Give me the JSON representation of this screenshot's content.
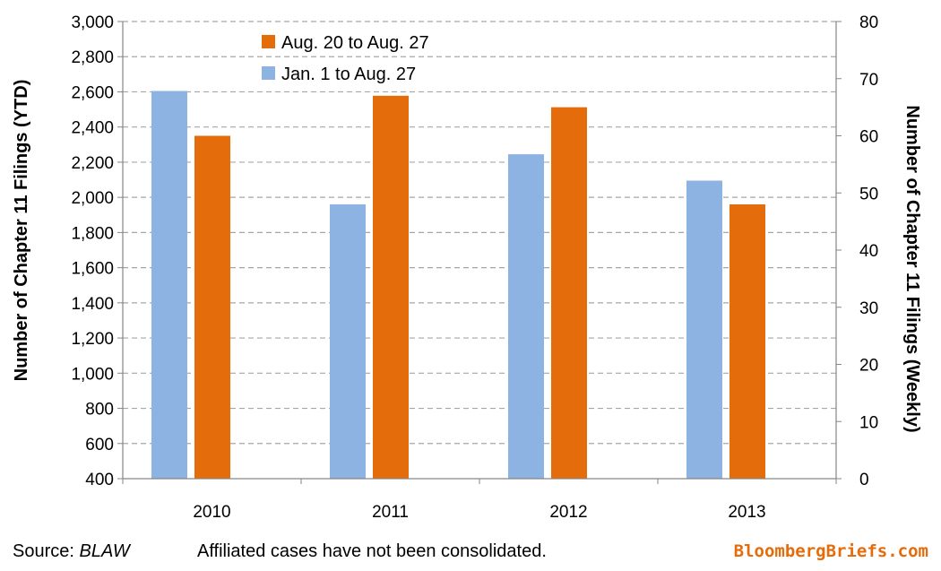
{
  "chart_data": {
    "type": "bar",
    "categories": [
      "2010",
      "2011",
      "2012",
      "2013"
    ],
    "series": [
      {
        "name": "Jan. 1 to Aug. 27",
        "axis": "left",
        "color": "#8db3e2",
        "values": [
          2605,
          1960,
          2245,
          2095
        ]
      },
      {
        "name": "Aug. 20 to Aug. 27",
        "axis": "right",
        "color": "#e46c0a",
        "values": [
          60,
          67,
          65,
          48
        ]
      }
    ],
    "legend_order": [
      1,
      0
    ],
    "legend_position": "top-left",
    "ylabel": "Number of Chapter 11 Filings  (YTD)",
    "y2label": "Number of Chapter 11 Filings (Weekly)",
    "ylim": [
      400,
      3000
    ],
    "ytick_step": 200,
    "y2lim": [
      0,
      80
    ],
    "y2tick_step": 10,
    "grid": true
  },
  "footer": {
    "source_label": "Source: ",
    "source_name": "BLAW",
    "note": "Affiliated cases have not been consolidated.",
    "brand": "BloombergBriefs.com"
  }
}
